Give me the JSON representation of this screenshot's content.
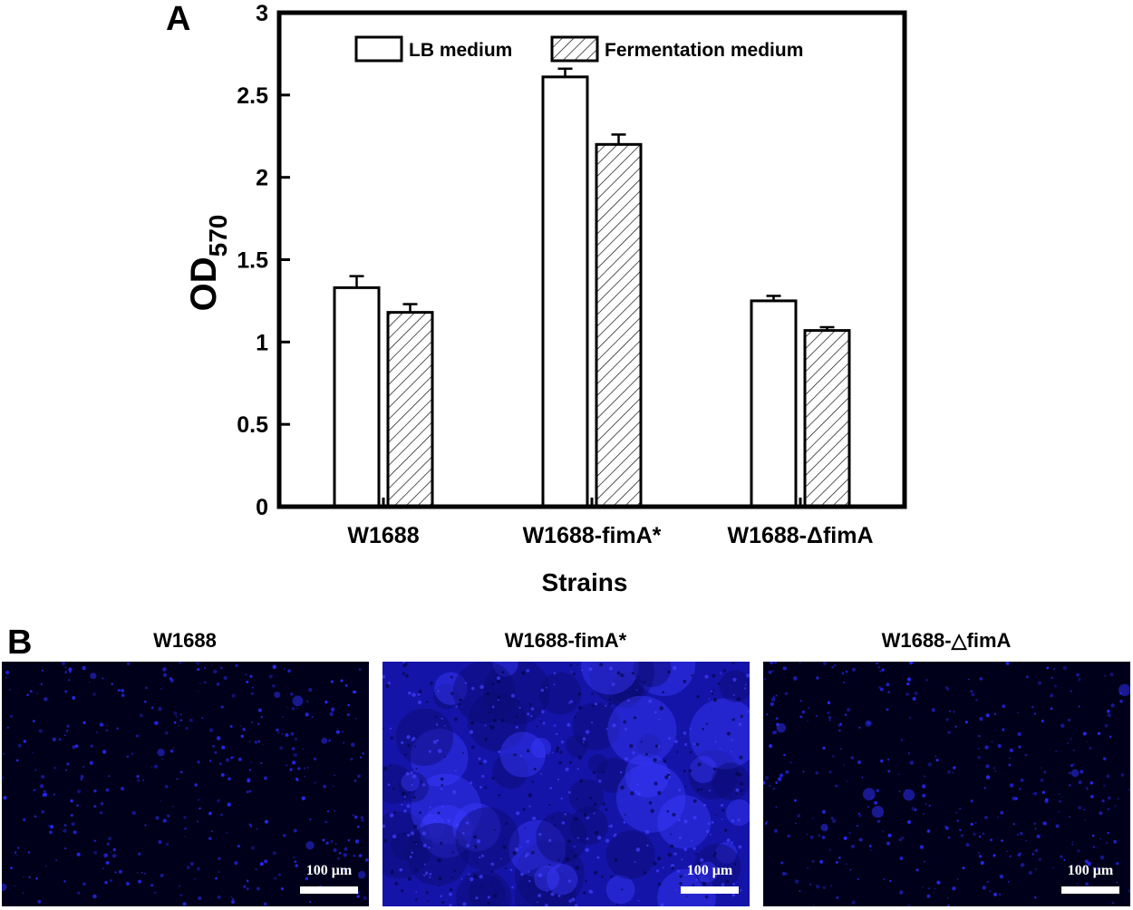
{
  "panel_a_letter": "A",
  "panel_b_letter": "B",
  "chart_data": {
    "type": "bar",
    "categories": [
      "W1688",
      "W1688-fimA*",
      "W1688-ΔfimA"
    ],
    "series": [
      {
        "name": "LB medium",
        "values": [
          1.33,
          2.61,
          1.25
        ],
        "errors": [
          0.07,
          0.05,
          0.03
        ],
        "fill": "none"
      },
      {
        "name": "Fermentation medium",
        "values": [
          1.18,
          2.2,
          1.07
        ],
        "errors": [
          0.05,
          0.06,
          0.02
        ],
        "fill": "hatched"
      }
    ],
    "xlabel": "Strains",
    "ylabel": "OD",
    "ylabel_subscript": "570",
    "ylim": [
      0,
      3
    ],
    "yticks": [
      0,
      0.5,
      1,
      1.5,
      2,
      2.5,
      3
    ],
    "ytick_labels": [
      "0",
      "0.5",
      "1",
      "1.5",
      "2",
      "2.5",
      "3"
    ],
    "grid": false,
    "legend_position": "top"
  },
  "micrographs": [
    {
      "title": "W1688",
      "scale_label": "100 μm",
      "density": "sparse"
    },
    {
      "title": "W1688-fimA*",
      "scale_label": "100 μm",
      "density": "dense"
    },
    {
      "title": "W1688-△fimA",
      "scale_label": "100 μm",
      "density": "sparse"
    }
  ],
  "colors": {
    "stain": "#2020ff",
    "background": "#00001a",
    "bar_outline": "#000000"
  }
}
